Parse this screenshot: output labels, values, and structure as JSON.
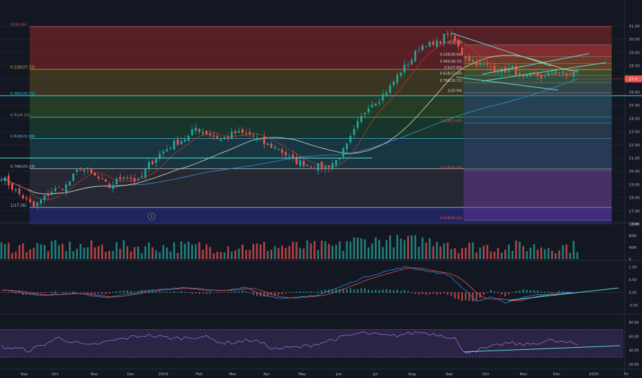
{
  "chart_data": {
    "type": "candlestick",
    "instrument_label_visible": false,
    "colors": {
      "background": "#131722",
      "up": "#26a69a",
      "down": "#ef5350",
      "grid": "#1e2330",
      "axis_text": "#b2b5be",
      "price_badge": "#ef5350"
    },
    "x_axis": {
      "labels": [
        "Sep",
        "Oct",
        "Nov",
        "Dec",
        "2019",
        "Feb",
        "Mar",
        "Apr",
        "May",
        "Jun",
        "Jul",
        "Aug",
        "Sep",
        "Oct",
        "Nov",
        "Dec",
        "2020",
        "Fe"
      ]
    },
    "price_axis": {
      "ticks": [
        "31.00",
        "30.00",
        "29.00",
        "28.00",
        "27.00",
        "26.00",
        "25.00",
        "24.00",
        "23.00",
        "22.00",
        "21.00",
        "20.00",
        "19.00",
        "18.00",
        "17.00",
        "16.00"
      ],
      "ylim": [
        16,
        31
      ],
      "current_price": "27.0"
    },
    "fib_retracement_1": {
      "levels": [
        {
          "label": "0(30.95)",
          "value": 30.95,
          "color": "#e8534e"
        },
        {
          "label": "0.236(27.72)",
          "value": 27.72,
          "color": "#f3a83b"
        },
        {
          "label": "0.382(25.72)",
          "value": 25.72,
          "color": "#26c6da"
        },
        {
          "label": "0.5(24.11)",
          "value": 24.11,
          "color": "#66bb6a"
        },
        {
          "label": "0.618(22.49)",
          "value": 22.49,
          "color": "#4fc3f7"
        },
        {
          "label": "0.786(20.19)",
          "value": 20.19,
          "color": "#bdbdbd"
        },
        {
          "label": "1(17.26)",
          "value": 17.26,
          "color": "#c5cae9"
        }
      ]
    },
    "fib_retracement_2": {
      "levels": [
        {
          "label": "0(29.59)",
          "value": 29.59
        },
        {
          "label": "0.236(28.69)",
          "value": 28.69
        },
        {
          "label": "0.382(28.15)",
          "value": 28.15
        },
        {
          "label": "0.5(27.69)",
          "value": 27.69
        },
        {
          "label": "0.618(27.26)",
          "value": 27.26
        },
        {
          "label": "0.786(26.71)",
          "value": 26.71
        },
        {
          "label": "1(25.94)",
          "value": 25.94
        },
        {
          "label": "1.618(23.65)",
          "value": 23.65
        },
        {
          "label": "2.618(20.08)",
          "value": 20.08
        },
        {
          "label": "3.618(16.29)",
          "value": 16.29
        }
      ]
    },
    "annotation_marker": "3",
    "price_path": [
      [
        0,
        19.6
      ],
      [
        4,
        18.5
      ],
      [
        9,
        17.3
      ],
      [
        14,
        18.5
      ],
      [
        18,
        18.9
      ],
      [
        22,
        20.3
      ],
      [
        26,
        19.6
      ],
      [
        30,
        18.8
      ],
      [
        34,
        19.7
      ],
      [
        38,
        19.2
      ],
      [
        41,
        20.5
      ],
      [
        44,
        21.3
      ],
      [
        48,
        22.1
      ],
      [
        52,
        22.6
      ],
      [
        54,
        23.3
      ],
      [
        57,
        22.9
      ],
      [
        61,
        22.4
      ],
      [
        65,
        22.9
      ],
      [
        69,
        22.8
      ],
      [
        73,
        22.1
      ],
      [
        77,
        21.7
      ],
      [
        81,
        20.8
      ],
      [
        84,
        20.6
      ],
      [
        87,
        20.4
      ],
      [
        90,
        20.3
      ],
      [
        93,
        20.8
      ],
      [
        96,
        21.9
      ],
      [
        99,
        23.6
      ],
      [
        102,
        25.0
      ],
      [
        105,
        25.5
      ],
      [
        108,
        26.4
      ],
      [
        111,
        27.6
      ],
      [
        114,
        28.5
      ],
      [
        116,
        29.4
      ],
      [
        118,
        29.7
      ],
      [
        120,
        29.5
      ],
      [
        122,
        29.9
      ],
      [
        124,
        30.5
      ],
      [
        126,
        29.8
      ],
      [
        128,
        28.9
      ],
      [
        130,
        28.5
      ],
      [
        133,
        28.1
      ],
      [
        136,
        27.9
      ],
      [
        139,
        27.6
      ],
      [
        142,
        27.8
      ],
      [
        145,
        27.0
      ],
      [
        148,
        27.3
      ],
      [
        151,
        27.1
      ],
      [
        154,
        27.7
      ],
      [
        157,
        27.2
      ],
      [
        160,
        27.6
      ]
    ],
    "volume_panel": {
      "ticks": [
        "120M",
        "80M",
        "40M",
        "0"
      ],
      "ylim": [
        0,
        120
      ]
    },
    "macd_panel": {
      "ticks": [
        "1.00",
        "0.50",
        "0.00",
        "-0.50"
      ],
      "ylim": [
        -0.8,
        1.2
      ],
      "path": [
        [
          0,
          0.1
        ],
        [
          10,
          -0.1
        ],
        [
          20,
          -0.05
        ],
        [
          30,
          -0.2
        ],
        [
          40,
          0.05
        ],
        [
          50,
          0.2
        ],
        [
          56,
          0.1
        ],
        [
          62,
          0.05
        ],
        [
          68,
          0.2
        ],
        [
          74,
          -0.15
        ],
        [
          80,
          -0.25
        ],
        [
          88,
          -0.1
        ],
        [
          94,
          0.2
        ],
        [
          100,
          0.55
        ],
        [
          106,
          0.8
        ],
        [
          112,
          1.0
        ],
        [
          118,
          0.85
        ],
        [
          124,
          0.7
        ],
        [
          128,
          0.2
        ],
        [
          132,
          -0.35
        ],
        [
          136,
          -0.2
        ],
        [
          140,
          -0.4
        ],
        [
          146,
          -0.15
        ],
        [
          152,
          -0.05
        ],
        [
          160,
          0.0
        ]
      ]
    },
    "rsi_panel": {
      "ticks": [
        "80.00",
        "60.00",
        "40.00",
        "20.00"
      ],
      "ylim": [
        15,
        90
      ],
      "band": [
        30,
        70
      ],
      "path": [
        [
          0,
          45
        ],
        [
          8,
          40
        ],
        [
          16,
          58
        ],
        [
          24,
          46
        ],
        [
          32,
          55
        ],
        [
          40,
          62
        ],
        [
          48,
          57
        ],
        [
          56,
          60
        ],
        [
          62,
          50
        ],
        [
          70,
          55
        ],
        [
          76,
          42
        ],
        [
          84,
          45
        ],
        [
          92,
          55
        ],
        [
          100,
          65
        ],
        [
          108,
          60
        ],
        [
          116,
          66
        ],
        [
          122,
          62
        ],
        [
          126,
          58
        ],
        [
          128,
          38
        ],
        [
          132,
          40
        ],
        [
          136,
          44
        ],
        [
          140,
          50
        ],
        [
          146,
          48
        ],
        [
          152,
          54
        ],
        [
          158,
          50
        ],
        [
          160,
          48
        ]
      ]
    }
  }
}
